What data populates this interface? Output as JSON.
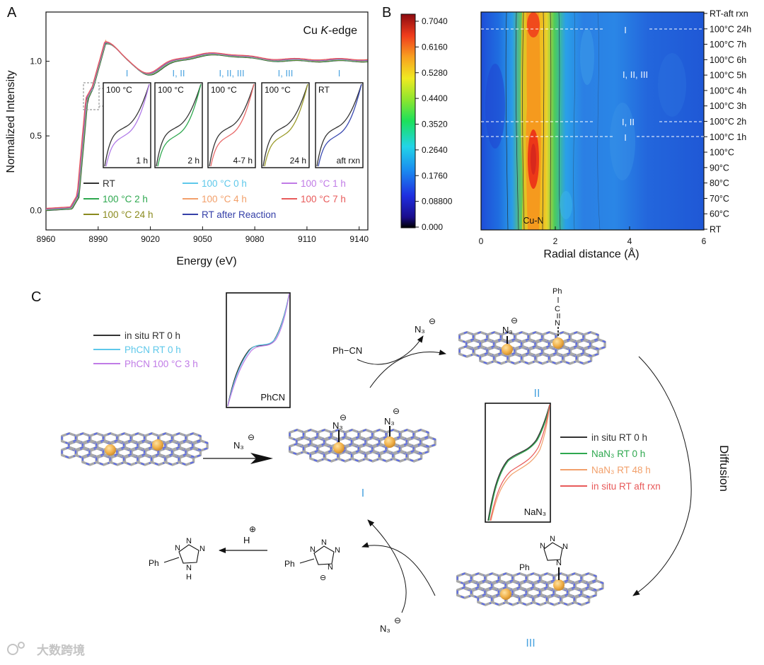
{
  "panel_labels": {
    "a": "A",
    "b": "B",
    "c": "C"
  },
  "chart_data": [
    {
      "id": "xanes",
      "type": "line",
      "title": "Cu K-edge",
      "title_parts": {
        "pre": "Cu ",
        "italic": "K",
        "post": "-edge"
      },
      "xlabel": "Energy (eV)",
      "ylabel": "Normalized Intensity",
      "xlim": [
        8960,
        9145
      ],
      "ylim": [
        -0.13,
        1.33
      ],
      "xticks": [
        "8960",
        "8990",
        "9020",
        "9050",
        "9080",
        "9110",
        "9140"
      ],
      "yticks": [
        "0.0",
        "0.5",
        "1.0"
      ],
      "series_colors": [
        "#333333",
        "#2ea84f",
        "#8a8a1e",
        "#5ec8ea",
        "#f2a06b",
        "#3540a8",
        "#c07be6",
        "#e85a5a"
      ],
      "legend": [
        {
          "label": "RT",
          "color": "#333333"
        },
        {
          "label": "100 °C 0 h",
          "color": "#5ec8ea"
        },
        {
          "label": "100 °C 1 h",
          "color": "#c07be6"
        },
        {
          "label": "100 °C 2 h",
          "color": "#2ea84f"
        },
        {
          "label": "100 °C 4 h",
          "color": "#f2a06b"
        },
        {
          "label": "100 °C 7 h",
          "color": "#e85a5a"
        },
        {
          "label": "100 °C 24 h",
          "color": "#8a8a1e"
        },
        {
          "label": "RT after Reaction",
          "color": "#3540a8"
        }
      ],
      "insets": [
        {
          "group": "I",
          "top": "100 °C",
          "bottom": "1 h",
          "compare_color": "#b07ae8"
        },
        {
          "group": "I, II",
          "top": "100 °C",
          "bottom": "2 h",
          "compare_color": "#2ea84f"
        },
        {
          "group": "I, II, III",
          "top": "100 °C",
          "bottom": "4-7 h",
          "compare_color": "#e86868"
        },
        {
          "group": "I, III",
          "top": "100 °C",
          "bottom": "24 h",
          "compare_color": "#9a9a2a"
        },
        {
          "group": "I",
          "top": "RT",
          "bottom": "aft rxn",
          "compare_color": "#3848b0"
        }
      ]
    },
    {
      "id": "ft_contour",
      "type": "heatmap",
      "xlabel": "Radial distance (Å)",
      "xlim": [
        0,
        6
      ],
      "xticks": [
        "0",
        "2",
        "4",
        "6"
      ],
      "row_labels": [
        "RT",
        "60°C",
        "70°C",
        "80°C",
        "90°C",
        "100°C",
        "100°C 1h",
        "100°C 2h",
        "100°C 3h",
        "100°C 4h",
        "100°C 5h",
        "100°C 6h",
        "100°C 7h",
        "100°C 24h",
        "RT-aft rxn"
      ],
      "colorbar_ticks": [
        "0.7040",
        "0.6160",
        "0.5280",
        "0.4400",
        "0.3520",
        "0.2640",
        "0.1760",
        "0.08800",
        "0.000"
      ],
      "colorbar_range": [
        0,
        0.704
      ],
      "peak_label": "Cu-N",
      "region_labels": [
        "I",
        "I, II, III",
        "I, II",
        "I"
      ]
    }
  ],
  "scheme": {
    "legend1": [
      {
        "label": "in situ RT 0 h",
        "color": "#333333"
      },
      {
        "label": "PhCN RT 0 h",
        "color": "#5ec8ea"
      },
      {
        "label": "PhCN 100 °C 3 h",
        "color": "#c07be6"
      }
    ],
    "inset1_label": "PhCN",
    "inset2_label": "NaN₃",
    "legend2": [
      {
        "label": "in situ RT 0 h",
        "color": "#333333"
      },
      {
        "label": "NaN₃ RT 0 h",
        "color": "#2ea84f"
      },
      {
        "label": "NaN₃ RT 48 h",
        "color": "#f2a06b"
      },
      {
        "label": "in situ RT aft rxn",
        "color": "#e85a5a"
      }
    ],
    "reagents": {
      "azide": "N₃",
      "ph_cn": "Ph−CN",
      "proton": "H",
      "ph": "Ph",
      "phenyl_group": "Ph"
    },
    "charges": {
      "minus": "⊖",
      "plus": "⊕"
    },
    "tetrazole_atoms": {
      "n": "N",
      "nh": "N",
      "h": "H",
      "c": "C"
    },
    "states": {
      "i": "I",
      "ii": "II",
      "iii": "III"
    },
    "diffusion": "Diffusion"
  },
  "watermark": "大数跨境"
}
